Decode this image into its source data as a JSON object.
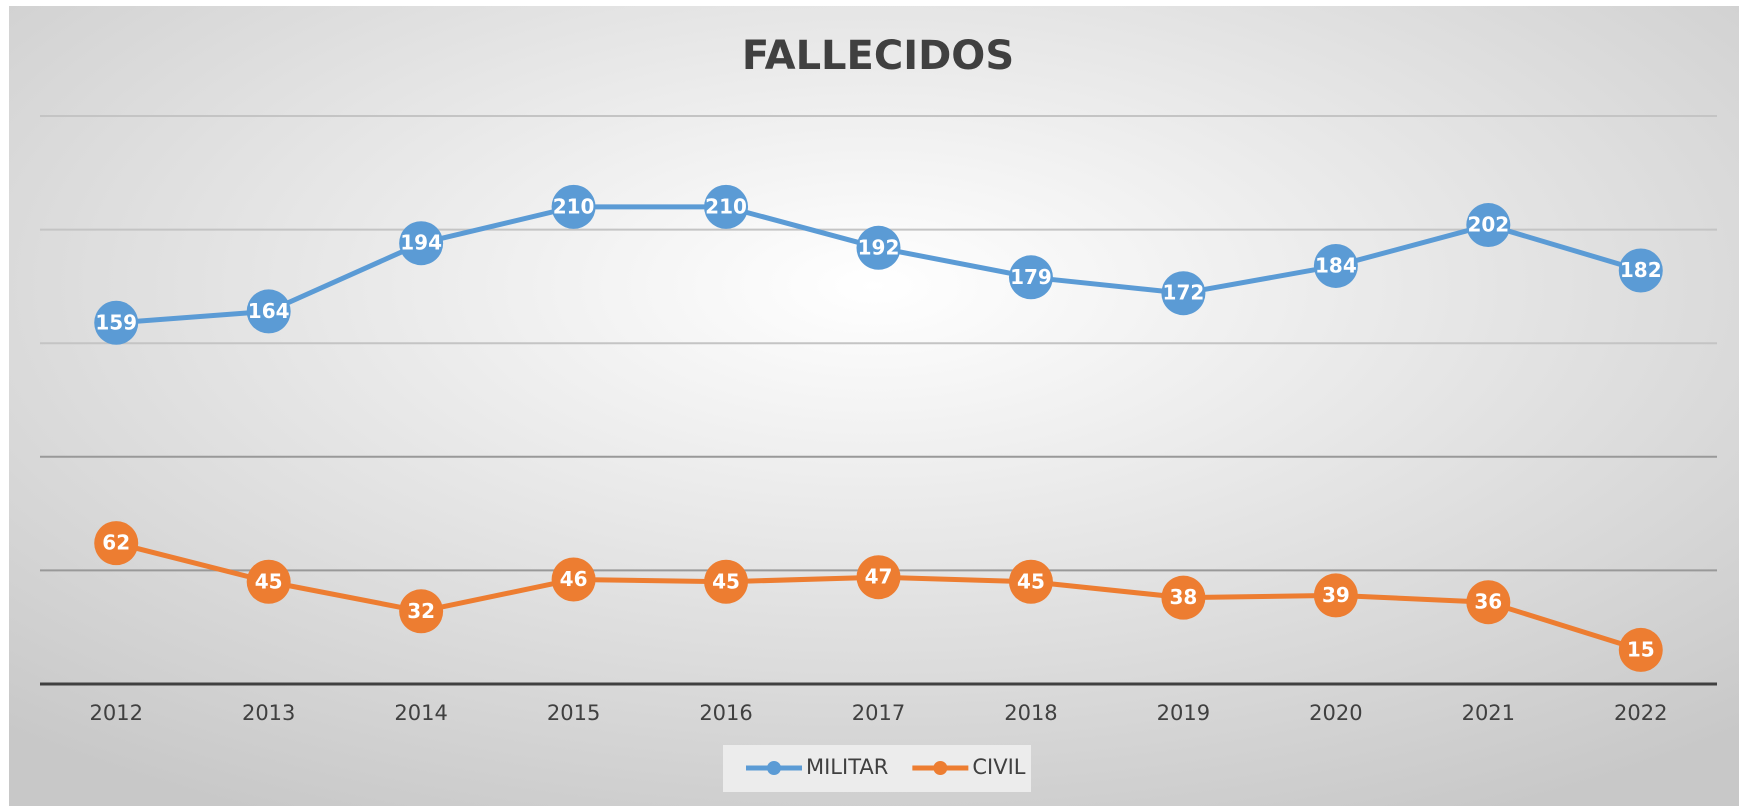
{
  "chart_data": {
    "type": "line",
    "title": "FALLECIDOS",
    "categories": [
      "2012",
      "2013",
      "2014",
      "2015",
      "2016",
      "2017",
      "2018",
      "2019",
      "2020",
      "2021",
      "2022"
    ],
    "series": [
      {
        "name": "MILITAR",
        "color": "#5b9bd5",
        "values": [
          159,
          164,
          194,
          210,
          210,
          192,
          179,
          172,
          184,
          202,
          182
        ]
      },
      {
        "name": "CIVIL",
        "color": "#ed7d31",
        "values": [
          62,
          45,
          32,
          46,
          45,
          47,
          45,
          38,
          39,
          36,
          15
        ]
      }
    ],
    "ylim": [
      0,
      250
    ],
    "yticks": [
      0,
      50,
      100,
      150,
      200,
      250
    ],
    "grid": true,
    "legend": "bottom"
  }
}
